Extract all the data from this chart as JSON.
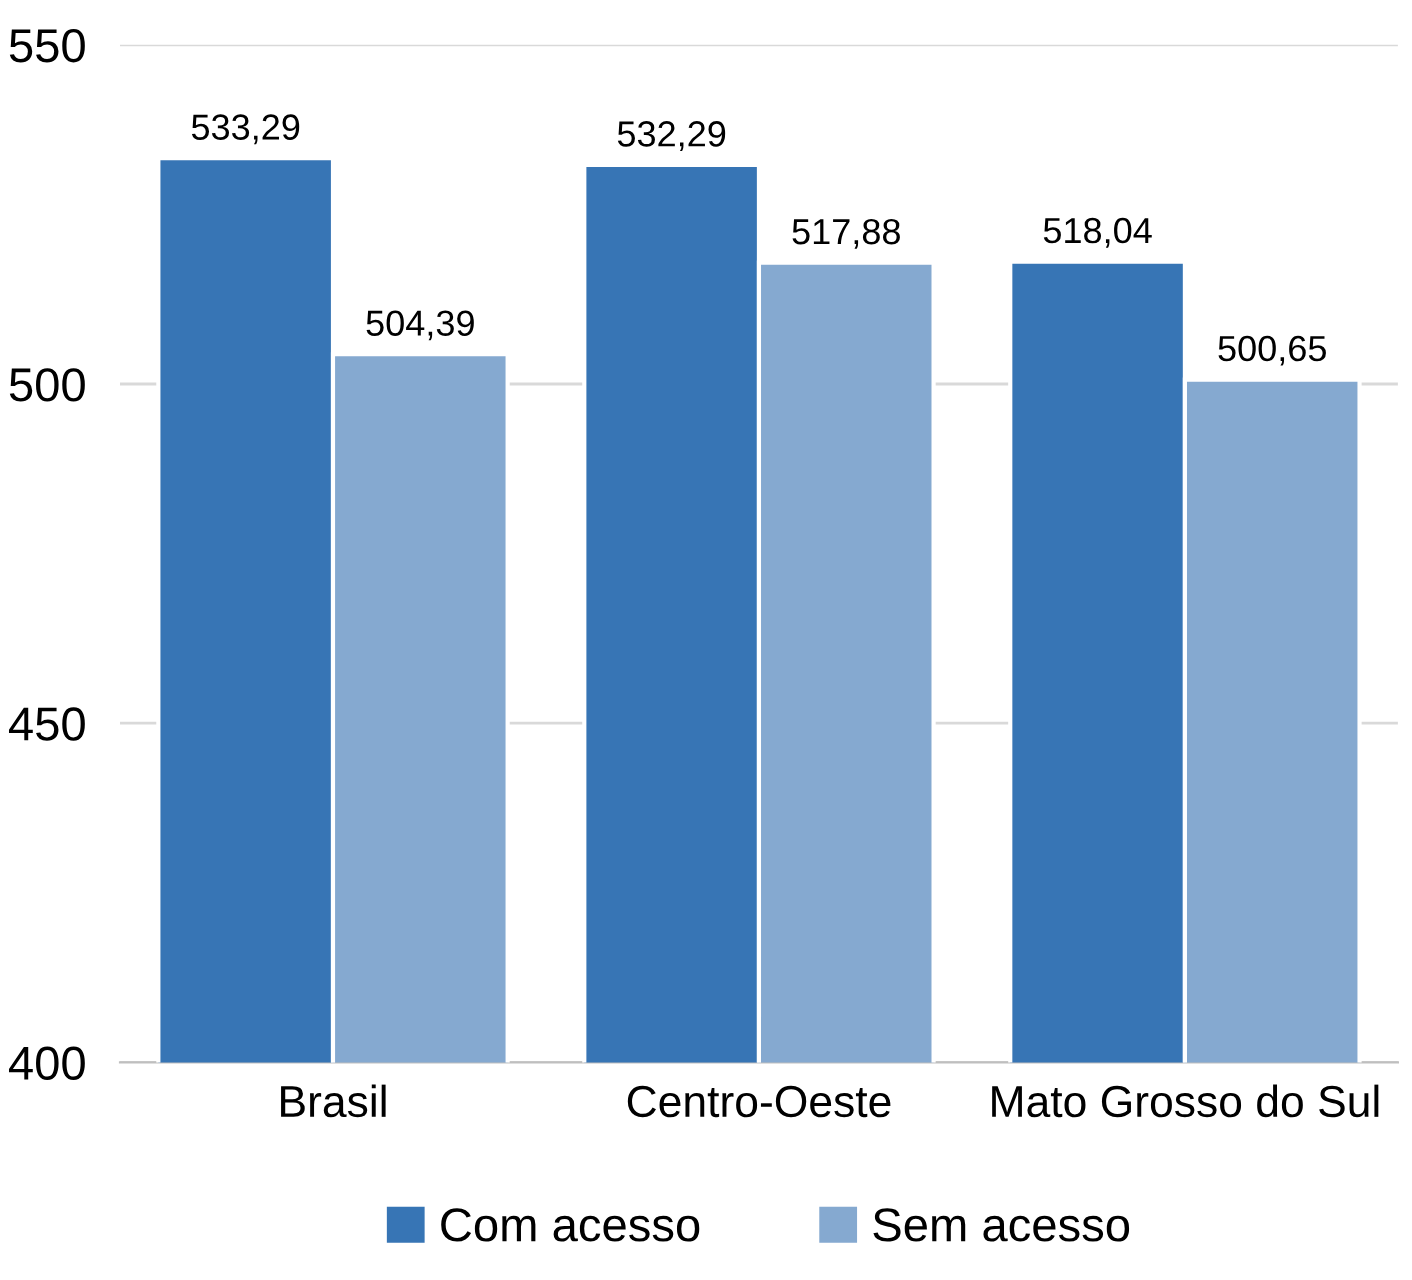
{
  "chart_data": {
    "type": "bar",
    "categories": [
      "Brasil",
      "Centro-Oeste",
      "Mato Grosso do Sul"
    ],
    "series": [
      {
        "name": "Com acesso",
        "color": "#3775b5",
        "values": [
          533.29,
          532.29,
          518.04
        ],
        "value_labels": [
          "533,29",
          "532,29",
          "518,04"
        ]
      },
      {
        "name": "Sem acesso",
        "color": "#85a9d0",
        "values": [
          504.39,
          517.88,
          500.65
        ],
        "value_labels": [
          "504,39",
          "517,88",
          "500,65"
        ]
      }
    ],
    "ylim": [
      400,
      550
    ],
    "yticks": [
      400,
      450,
      500,
      550
    ],
    "grid": "y",
    "legend": "bottom"
  }
}
